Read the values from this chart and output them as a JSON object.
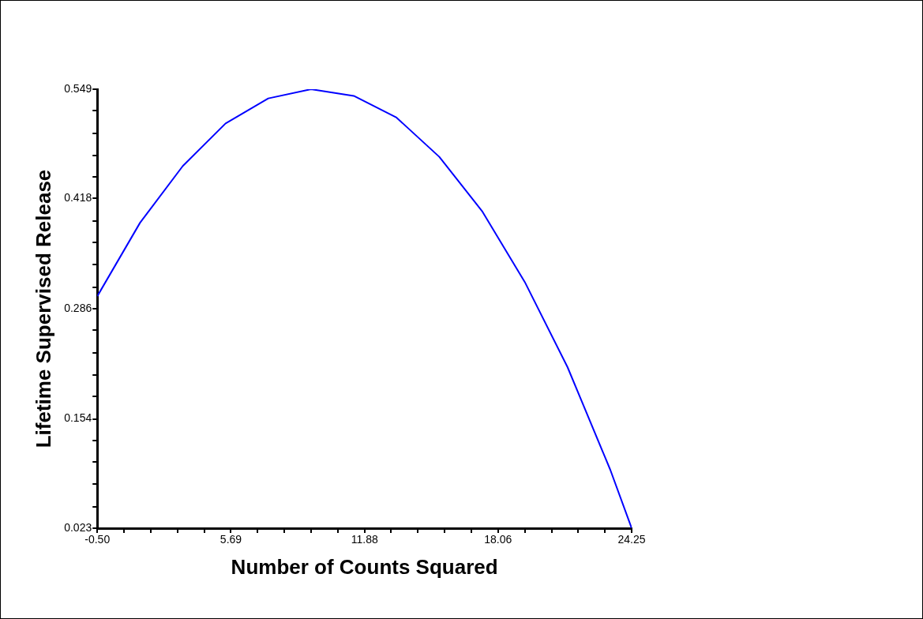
{
  "chart_data": {
    "type": "line",
    "xlabel": "Number of Counts Squared",
    "ylabel": "Lifetime Supervised Release",
    "x": [
      -0.5,
      1.48,
      3.46,
      5.44,
      7.42,
      9.4,
      11.38,
      13.36,
      15.34,
      17.32,
      19.3,
      21.28,
      23.26,
      24.25
    ],
    "series": [
      {
        "color": "#0000ff",
        "values": [
          0.301,
          0.389,
          0.457,
          0.508,
          0.538,
          0.549,
          0.541,
          0.515,
          0.468,
          0.403,
          0.318,
          0.216,
          0.093,
          0.023
        ]
      }
    ],
    "xlim": [
      -0.5,
      24.25
    ],
    "ylim": [
      0.023,
      0.549
    ],
    "xticks": [
      {
        "value": -0.5,
        "label": "-0.50"
      },
      {
        "value": 0.74,
        "label": null
      },
      {
        "value": 1.98,
        "label": null
      },
      {
        "value": 3.21,
        "label": null
      },
      {
        "value": 4.45,
        "label": null
      },
      5.69,
      {
        "value": 6.93,
        "label": null
      },
      {
        "value": 8.16,
        "label": null
      },
      {
        "value": 9.4,
        "label": null
      },
      {
        "value": 10.64,
        "label": null
      },
      11.88,
      {
        "value": 13.11,
        "label": null
      },
      {
        "value": 14.35,
        "label": null
      },
      {
        "value": 15.59,
        "label": null
      },
      {
        "value": 16.82,
        "label": null
      },
      18.06,
      {
        "value": 19.3,
        "label": null
      },
      {
        "value": 20.54,
        "label": null
      },
      {
        "value": 21.78,
        "label": null
      },
      {
        "value": 23.01,
        "label": null
      },
      24.25
    ],
    "yticks": [
      0.023,
      {
        "value": 0.049,
        "label": null
      },
      {
        "value": 0.076,
        "label": null
      },
      {
        "value": 0.102,
        "label": null
      },
      {
        "value": 0.128,
        "label": null
      },
      0.154,
      {
        "value": 0.181,
        "label": null
      },
      {
        "value": 0.207,
        "label": null
      },
      {
        "value": 0.233,
        "label": null
      },
      {
        "value": 0.26,
        "label": null
      },
      0.286,
      {
        "value": 0.312,
        "label": null
      },
      {
        "value": 0.339,
        "label": null
      },
      {
        "value": 0.365,
        "label": null
      },
      {
        "value": 0.391,
        "label": null
      },
      0.418,
      {
        "value": 0.444,
        "label": null
      },
      {
        "value": 0.47,
        "label": null
      },
      {
        "value": 0.496,
        "label": null
      },
      {
        "value": 0.523,
        "label": null
      },
      0.549
    ],
    "grid": false,
    "legend": false,
    "marker": "none",
    "line_style": "solid"
  }
}
